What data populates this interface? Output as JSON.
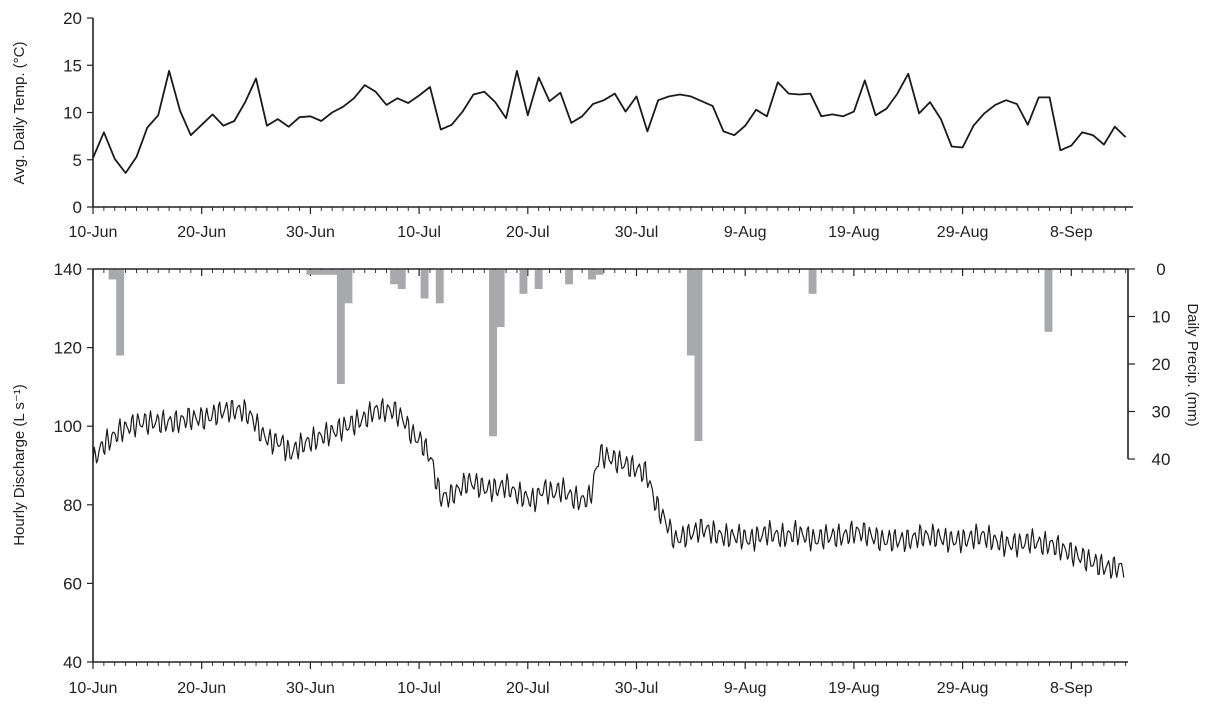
{
  "chart_data": [
    {
      "type": "line",
      "title": "",
      "xlabel": "",
      "ylabel": "Avg. Daily Temp. (°C)",
      "x_tick_labels": [
        "10-Jun",
        "20-Jun",
        "30-Jun",
        "10-Jul",
        "20-Jul",
        "30-Jul",
        "9-Aug",
        "19-Aug",
        "29-Aug",
        "8-Sep"
      ],
      "y_tick_labels": [
        "0",
        "5",
        "10",
        "15",
        "20"
      ],
      "ylim": [
        0,
        20
      ],
      "grid": false,
      "series": [
        {
          "x_start": "2012-06-10",
          "x_step_days": 1,
          "y": [
            5.2,
            7.9,
            5.1,
            3.6,
            5.3,
            8.4,
            9.7,
            14.4,
            10.2,
            7.6,
            8.7,
            9.8,
            8.6,
            9.1,
            11.1,
            13.6,
            8.6,
            9.3,
            8.5,
            9.5,
            9.6,
            9.1,
            10.0,
            10.6,
            11.5,
            12.9,
            12.2,
            10.8,
            11.5,
            11.0,
            11.8,
            12.7,
            8.2,
            8.7,
            10.1,
            11.9,
            12.2,
            11.1,
            9.4,
            14.4,
            9.7,
            13.7,
            11.2,
            12.1,
            8.9,
            9.6,
            10.9,
            11.3,
            12.0,
            10.1,
            11.7,
            8.0,
            11.3,
            11.7,
            11.9,
            11.7,
            11.2,
            10.7,
            8.0,
            7.6,
            8.6,
            10.3,
            9.6,
            13.2,
            12.0,
            11.9,
            12.0,
            9.6,
            9.8,
            9.6,
            10.1,
            13.4,
            9.7,
            10.4,
            12.0,
            14.1,
            9.9,
            11.1,
            9.3,
            6.4,
            6.3,
            8.6,
            9.9,
            10.8,
            11.3,
            10.9,
            8.7,
            11.6,
            11.6,
            6.0,
            6.5,
            7.9,
            7.6,
            6.6,
            8.5,
            7.4
          ]
        }
      ]
    },
    {
      "type": "line",
      "title": "",
      "xlabel": "",
      "ylabel": "Hourly Discharge (L s⁻¹)",
      "x_tick_labels": [
        "10-Jun",
        "20-Jun",
        "30-Jun",
        "10-Jul",
        "20-Jul",
        "30-Jul",
        "9-Aug",
        "19-Aug",
        "29-Aug",
        "8-Sep"
      ],
      "y_tick_labels": [
        "40",
        "60",
        "80",
        "100",
        "120",
        "140"
      ],
      "ylim": [
        40,
        140
      ],
      "grid": false,
      "series": [
        {
          "x_start": "2012-06-10",
          "x_step_days": 1,
          "values_are": "approximate daily level; hourly fluctuation not itemized",
          "y": [
            91,
            95,
            97,
            99,
            100,
            101,
            101,
            101,
            101,
            101,
            102,
            102,
            102,
            103,
            104,
            104,
            104,
            102,
            98,
            96,
            96,
            93,
            95,
            96,
            97,
            98,
            99,
            100,
            101,
            102,
            104,
            104,
            104,
            102,
            98,
            96,
            92,
            82,
            82,
            84,
            86,
            85,
            84,
            84,
            85,
            83,
            82,
            81,
            84,
            83,
            84,
            82,
            81,
            82,
            93,
            92,
            91,
            90,
            89,
            88,
            80,
            76,
            71,
            72,
            73,
            74,
            73,
            72,
            72,
            72,
            71,
            72,
            73,
            72,
            72,
            73,
            72,
            71,
            72,
            72,
            72,
            73,
            73,
            72,
            71,
            71,
            71,
            71,
            72,
            72,
            72,
            71,
            71,
            71,
            72,
            72,
            71,
            70,
            70,
            70,
            71,
            70,
            70,
            69,
            68,
            67,
            66,
            65,
            64,
            64
          ]
        }
      ]
    },
    {
      "type": "bar",
      "orientation": "inverted",
      "title": "",
      "ylabel": "Daily Precip. (mm)",
      "y_tick_labels": [
        "0",
        "10",
        "20",
        "30",
        "40"
      ],
      "ylim": [
        0,
        40
      ],
      "x_start": "2012-06-10",
      "x_step_days": 1,
      "values": [
        0,
        2,
        18,
        0,
        0,
        0,
        0,
        0,
        0,
        0,
        0,
        0,
        0,
        0,
        0,
        0,
        0,
        0,
        0,
        0,
        0,
        0,
        0,
        0,
        0,
        0,
        0,
        1,
        1,
        1,
        1,
        24,
        7,
        0,
        0,
        0,
        0,
        0,
        3,
        4,
        0,
        0,
        6,
        0,
        7,
        0,
        0,
        0,
        0,
        0,
        0,
        35,
        12,
        0,
        0,
        5,
        0,
        4,
        0,
        0,
        0,
        3,
        0,
        0,
        2,
        1,
        0,
        0,
        0,
        0,
        0,
        0,
        0,
        0,
        0,
        0,
        0,
        18,
        36,
        0,
        0,
        0,
        0,
        0,
        0,
        0,
        0,
        0,
        0,
        0,
        0,
        0,
        0,
        5,
        0,
        0,
        0,
        0,
        0,
        0,
        0,
        0,
        0,
        0,
        0,
        0,
        0,
        0,
        0,
        0,
        0,
        0,
        0,
        0,
        0,
        0,
        0,
        0,
        0,
        0,
        0,
        0,
        0,
        0,
        13,
        0,
        0,
        0,
        0
      ]
    }
  ]
}
